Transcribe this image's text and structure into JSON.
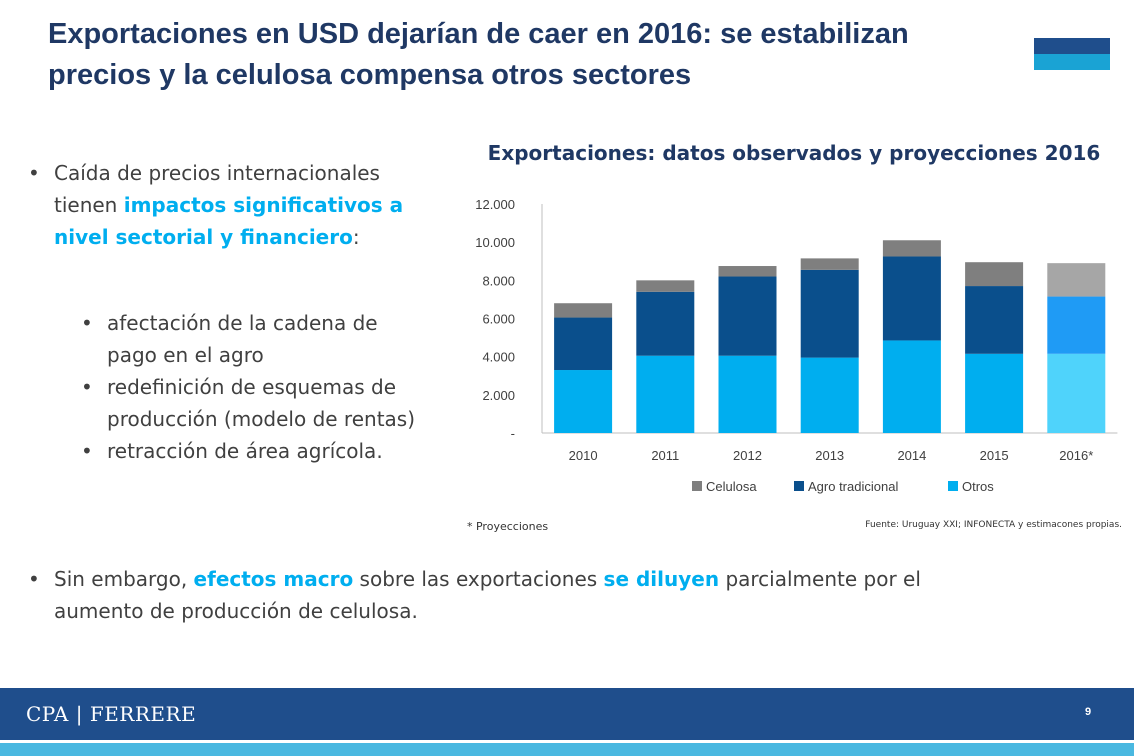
{
  "slide": {
    "title": "Exportaciones en USD dejarían de caer en 2016: se estabilizan precios y la celulosa compensa otros sectores",
    "accent_color": "#00aeef",
    "title_color": "#1f3864",
    "logo_colors": [
      "#1f4e8c",
      "#1aa3d4"
    ],
    "footer_color": "#1f4e8c",
    "footer_stripe_color": "#4ab8e0"
  },
  "left_bullet": {
    "part1": "Caída de precios internacionales tienen ",
    "highlight": "impactos significativos a nivel sectorial y financiero",
    "part2": ":"
  },
  "sub_bullets": [
    "afectación de la cadena de pago en el agro",
    "redefinición de esquemas de producción (modelo de rentas)",
    "retracción de área agrícola."
  ],
  "bottom_bullet": {
    "part1": "Sin embargo, ",
    "highlight1": "efectos macro",
    "part2": " sobre las exportaciones ",
    "highlight2": "se diluyen",
    "part3": " parcialmente por el aumento de producción de celulosa."
  },
  "footnote": "* Proyecciones",
  "source": "Fuente: Uruguay XXI; INFONECTA y estimacones propias.",
  "footer": {
    "brand": "CPA | FERRERE",
    "page_number": "9"
  },
  "chart_data": {
    "type": "bar",
    "stacked": true,
    "title": "Exportaciones: datos observados y proyecciones 2016",
    "categories": [
      "2010",
      "2011",
      "2012",
      "2013",
      "2014",
      "2015",
      "2016*"
    ],
    "series": [
      {
        "name": "Otros",
        "values": [
          3300,
          4050,
          4050,
          3950,
          4850,
          4150,
          4150
        ],
        "color": "#00aeef"
      },
      {
        "name": "Agro tradicional",
        "values": [
          2750,
          3350,
          4150,
          4600,
          4400,
          3550,
          3000
        ],
        "color": "#0a4f8c"
      },
      {
        "name": "Celulosa",
        "values": [
          750,
          600,
          550,
          600,
          850,
          1250,
          1750
        ],
        "color": "#7f7f7f"
      }
    ],
    "projection_colors": {
      "Otros": "#4fd3fb",
      "Agro tradicional": "#1f9bf5",
      "Celulosa": "#a6a6a6"
    },
    "ylim": [
      0,
      12000
    ],
    "yticks": [
      0,
      2000,
      4000,
      6000,
      8000,
      10000,
      12000
    ],
    "ytick_labels": [
      "-",
      "2.000",
      "4.000",
      "6.000",
      "8.000",
      "10.000",
      "12.000"
    ],
    "grid": false,
    "legend_position": "bottom",
    "legend": [
      "Celulosa",
      "Agro tradicional",
      "Otros"
    ]
  }
}
